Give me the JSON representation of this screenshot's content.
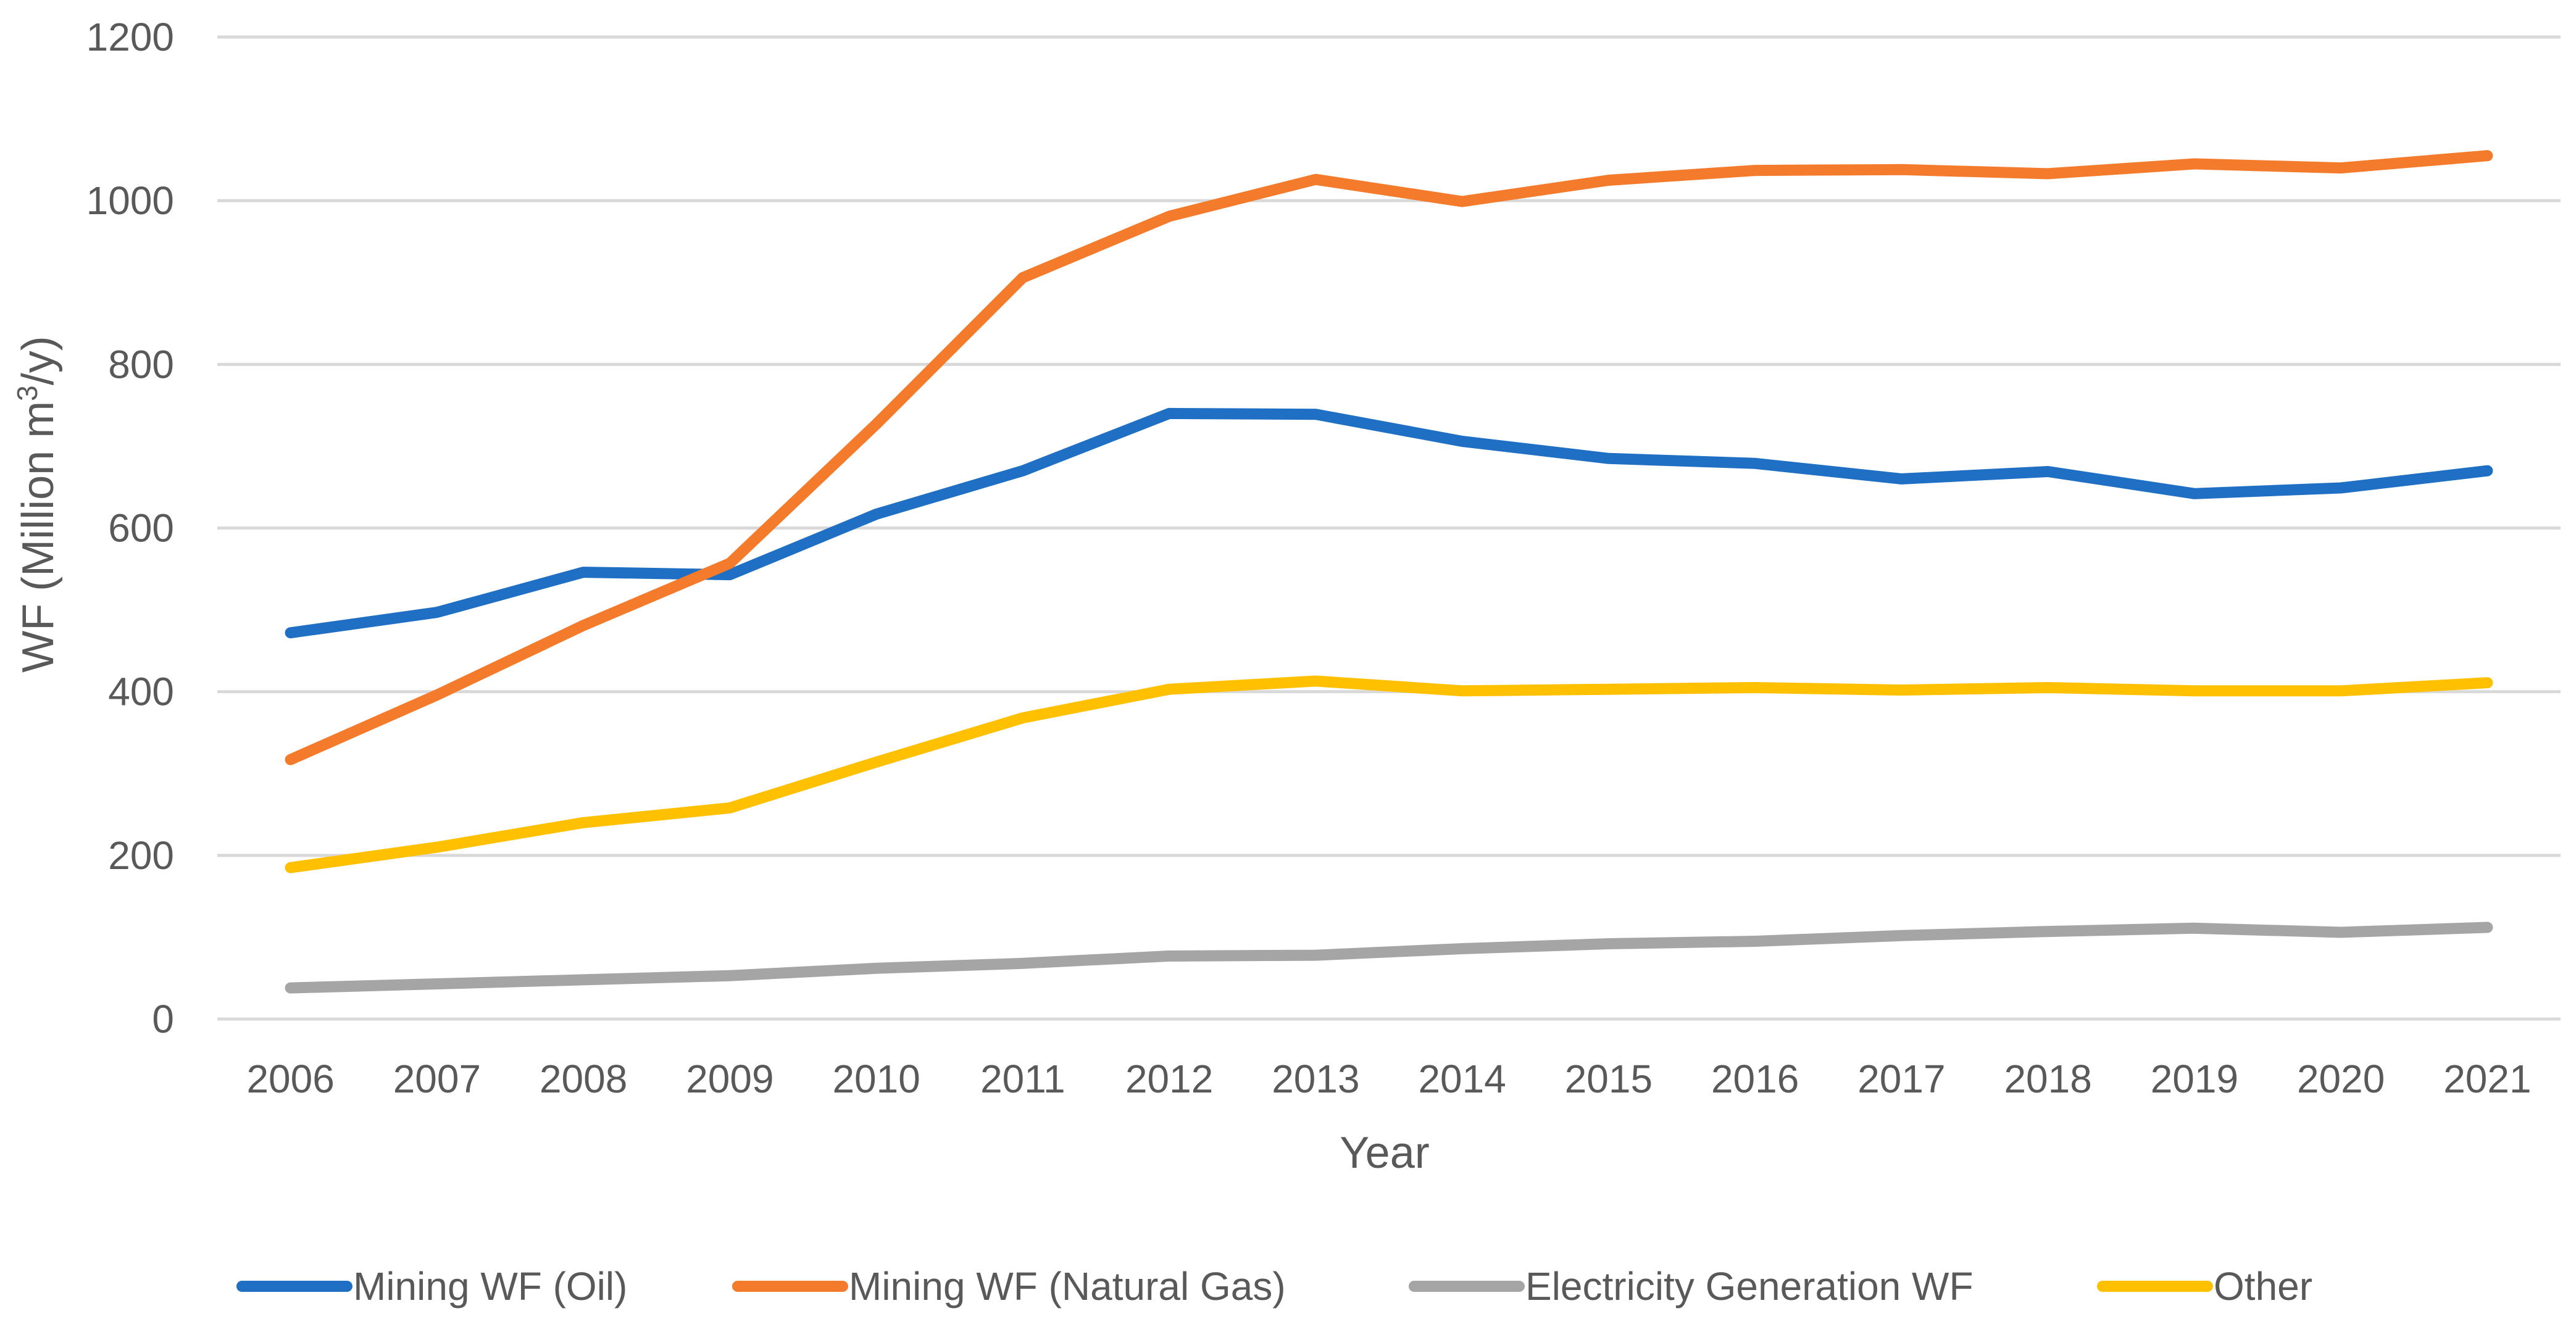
{
  "chart_data": {
    "type": "line",
    "title": "",
    "xlabel": "Year",
    "ylabel_parts": {
      "base": "WF (Million m",
      "sup": "3",
      "tail": "/y)"
    },
    "ylim": [
      0,
      1200
    ],
    "yticks": [
      "0",
      "200",
      "400",
      "600",
      "800",
      "1000",
      "1200"
    ],
    "ytick_values": [
      0,
      200,
      400,
      600,
      800,
      1000,
      1200
    ],
    "grid": true,
    "legend_position": "bottom",
    "categories": [
      "2006",
      "2007",
      "2008",
      "2009",
      "2010",
      "2011",
      "2012",
      "2013",
      "2014",
      "2015",
      "2016",
      "2017",
      "2018",
      "2019",
      "2020",
      "2021"
    ],
    "series": [
      {
        "name": "Mining WF (Oil)",
        "color": "#1f6fc4",
        "values": [
          472,
          497,
          546,
          543,
          617,
          670,
          740,
          739,
          706,
          685,
          679,
          660,
          669,
          642,
          649,
          670
        ]
      },
      {
        "name": "Mining WF (Natural Gas)",
        "color": "#f47b2b",
        "values": [
          317,
          396,
          481,
          557,
          727,
          906,
          981,
          1026,
          999,
          1025,
          1037,
          1038,
          1033,
          1045,
          1040,
          1055
        ]
      },
      {
        "name": "Electricity Generation WF",
        "color": "#a5a5a5",
        "values": [
          38,
          43,
          48,
          53,
          62,
          68,
          77,
          78,
          86,
          92,
          95,
          102,
          107,
          111,
          106,
          112
        ]
      },
      {
        "name": "Other",
        "color": "#ffc000",
        "values": [
          185,
          210,
          240,
          258,
          314,
          368,
          403,
          413,
          401,
          403,
          405,
          402,
          405,
          401,
          401,
          411
        ]
      }
    ]
  }
}
